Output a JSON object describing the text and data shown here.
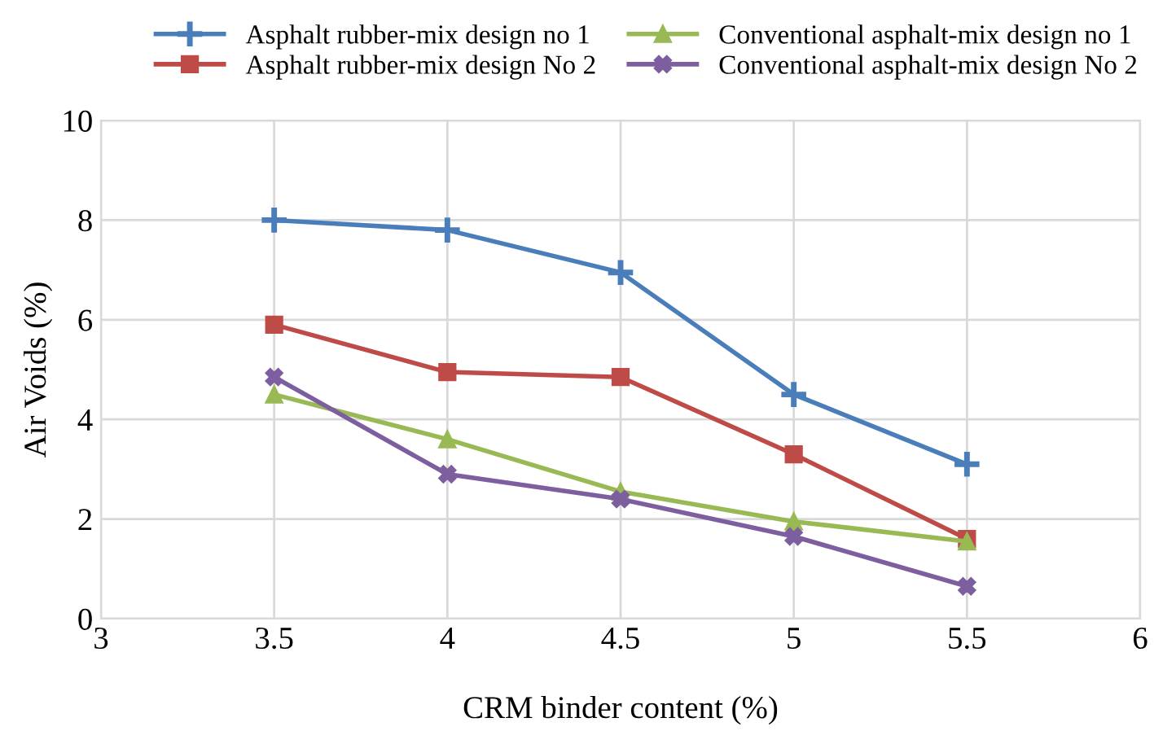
{
  "chart_data": {
    "type": "line",
    "xlabel": "CRM binder content (%)",
    "ylabel": "Air Voids (%)",
    "x": [
      3.5,
      4,
      4.5,
      5,
      5.5
    ],
    "xlim": [
      3,
      6
    ],
    "xticks": [
      3,
      3.5,
      4,
      4.5,
      5,
      5.5,
      6
    ],
    "ylim": [
      0,
      10
    ],
    "yticks": [
      0,
      2,
      4,
      6,
      8,
      10
    ],
    "grid": true,
    "legend": "top",
    "line_style": "solid",
    "series": [
      {
        "name": "Asphalt rubber-mix design no 1",
        "color": "#4a7ebb",
        "marker": "cross",
        "values": [
          8.0,
          7.8,
          6.95,
          4.5,
          3.1
        ]
      },
      {
        "name": "Asphalt rubber-mix design No 2",
        "color": "#be4b48",
        "marker": "square",
        "values": [
          5.9,
          4.95,
          4.85,
          3.3,
          1.6
        ]
      },
      {
        "name": "Conventional asphalt-mix design no 1",
        "color": "#98b954",
        "marker": "triangle",
        "values": [
          4.5,
          3.6,
          2.55,
          1.95,
          1.55
        ]
      },
      {
        "name": "Conventional asphalt-mix design No 2",
        "color": "#7d5fa0",
        "marker": "x",
        "values": [
          4.85,
          2.9,
          2.4,
          1.65,
          0.65
        ]
      }
    ]
  }
}
